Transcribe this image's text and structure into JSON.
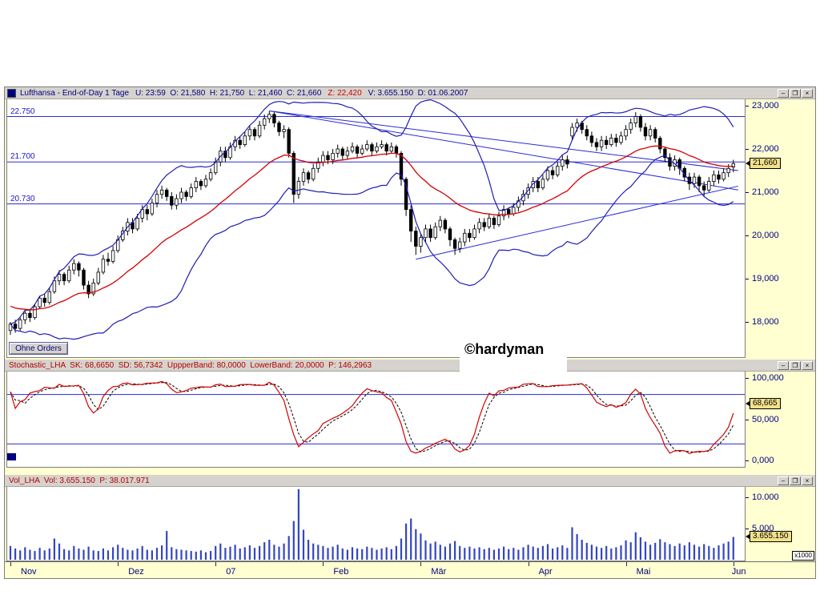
{
  "app": {
    "controls": {
      "minimize": "–",
      "maximize": "❒",
      "close": "×"
    }
  },
  "colors": {
    "navy": "#000080",
    "title_red": "#b40000",
    "line_blue": "#2a2ad4",
    "band_blue": "#1e1eb4",
    "ma_red": "#d40000",
    "candle": "#000000",
    "volume_bar": "#3346c2",
    "badge_bg": "#f2e18a",
    "axis_bg": "#ffffd2",
    "titlebar_bg": "#d6d3ce"
  },
  "price_panel": {
    "title_main": "Lufthansa - End-of-Day 1 Tage",
    "title_fields": "U: 23:59  O: 21,580  H: 21,750  L: 21,460  C: 21,660",
    "title_field_red": "Z: 22,420",
    "title_fields2": "V: 3.655.150  D: 01.06.2007",
    "axis": [
      {
        "label": "23,000",
        "value": 23.0
      },
      {
        "label": "22,000",
        "value": 22.0
      },
      {
        "label": "21,000",
        "value": 21.0
      },
      {
        "label": "20,000",
        "value": 20.0
      },
      {
        "label": "19,000",
        "value": 19.0
      },
      {
        "label": "18,000",
        "value": 18.0
      }
    ],
    "hlines": [
      {
        "label": "22.750",
        "value": 22.75
      },
      {
        "label": "21.700",
        "value": 21.7
      },
      {
        "label": "20.730",
        "value": 20.73
      }
    ],
    "price_badge": "21,660",
    "price_badge_value": 21.66,
    "orders_button": "Ohne Orders",
    "watermark": "©hardyman"
  },
  "stoch_panel": {
    "title": "Stochastic_LHA  SK: 68,6650  SD: 56,7342  UppperBand: 80,0000  LowerBand: 20,0000  P: 146,2963",
    "axis": [
      {
        "label": "100,000",
        "value": 100
      },
      {
        "label": "50,000",
        "value": 50
      },
      {
        "label": "0,000",
        "value": 0
      }
    ],
    "badge": "68,665",
    "badge_value": 68.665,
    "upper_band": 80,
    "lower_band": 20
  },
  "vol_panel": {
    "title": "Vol_LHA  Vol: 3.655.150  P: 38.017.971",
    "axis": [
      {
        "label": "10.000",
        "value": 10
      },
      {
        "label": "5.000",
        "value": 5
      }
    ],
    "badge": "3.655.150",
    "badge_value": 3.655,
    "x1000_label": "x1000"
  },
  "x_axis": {
    "months": [
      {
        "label": "Nov",
        "index": 0
      },
      {
        "label": "Dez",
        "index": 22
      },
      {
        "label": "07",
        "index": 42
      },
      {
        "label": "Feb",
        "index": 64
      },
      {
        "label": "Mär",
        "index": 84
      },
      {
        "label": "Apr",
        "index": 106
      },
      {
        "label": "Mai",
        "index": 126
      },
      {
        "label": "Jun",
        "index": 148
      }
    ]
  },
  "chart_data": {
    "type": "candlestick",
    "instrument": "Lufthansa",
    "last_close": 21.66,
    "y_axis_range": [
      17.2,
      23.15
    ],
    "indicators": {
      "ma_period": 20,
      "bollinger_period": 20,
      "bollinger_mult": 2,
      "stoch_k": 14,
      "stoch_smooth": 3,
      "stoch_d": 3
    },
    "trendlines": [
      {
        "from_index": 53,
        "from_price": 22.88,
        "to_index": 149,
        "to_price": 21.5
      },
      {
        "from_index": 53,
        "from_price": 22.88,
        "to_index": 149,
        "to_price": 21.05
      },
      {
        "from_index": 83,
        "from_price": 19.45,
        "to_index": 149,
        "to_price": 21.14
      }
    ],
    "candles_ohlc": [
      [
        17.8,
        18.0,
        17.7,
        17.95
      ],
      [
        17.95,
        18.05,
        17.75,
        17.85
      ],
      [
        17.85,
        18.1,
        17.8,
        18.05
      ],
      [
        18.05,
        18.25,
        17.95,
        18.2
      ],
      [
        18.2,
        18.3,
        18.0,
        18.1
      ],
      [
        18.1,
        18.4,
        18.05,
        18.35
      ],
      [
        18.35,
        18.6,
        18.3,
        18.55
      ],
      [
        18.55,
        18.65,
        18.35,
        18.45
      ],
      [
        18.45,
        18.8,
        18.4,
        18.7
      ],
      [
        18.7,
        19.05,
        18.65,
        18.95
      ],
      [
        18.95,
        19.2,
        18.85,
        19.1
      ],
      [
        19.1,
        19.15,
        18.85,
        18.95
      ],
      [
        18.95,
        19.3,
        18.9,
        19.2
      ],
      [
        19.2,
        19.45,
        19.1,
        19.35
      ],
      [
        19.35,
        19.4,
        19.05,
        19.2
      ],
      [
        19.2,
        19.25,
        18.75,
        18.85
      ],
      [
        18.85,
        18.95,
        18.55,
        18.65
      ],
      [
        18.65,
        19.0,
        18.6,
        18.9
      ],
      [
        18.9,
        19.25,
        18.85,
        19.15
      ],
      [
        19.15,
        19.55,
        19.1,
        19.45
      ],
      [
        19.45,
        19.6,
        19.3,
        19.4
      ],
      [
        19.4,
        19.75,
        19.35,
        19.65
      ],
      [
        19.65,
        20.0,
        19.6,
        19.9
      ],
      [
        19.9,
        20.2,
        19.85,
        20.1
      ],
      [
        20.1,
        20.4,
        20.0,
        20.3
      ],
      [
        20.3,
        20.4,
        20.05,
        20.15
      ],
      [
        20.15,
        20.5,
        20.1,
        20.4
      ],
      [
        20.4,
        20.7,
        20.3,
        20.6
      ],
      [
        20.6,
        20.7,
        20.35,
        20.5
      ],
      [
        20.5,
        20.85,
        20.45,
        20.75
      ],
      [
        20.75,
        21.05,
        20.65,
        20.95
      ],
      [
        20.95,
        21.15,
        20.85,
        21.05
      ],
      [
        21.05,
        21.1,
        20.8,
        20.9
      ],
      [
        20.9,
        21.0,
        20.6,
        20.7
      ],
      [
        20.7,
        20.95,
        20.6,
        20.85
      ],
      [
        20.85,
        21.1,
        20.75,
        21.0
      ],
      [
        21.0,
        21.05,
        20.8,
        20.9
      ],
      [
        20.9,
        21.2,
        20.85,
        21.1
      ],
      [
        21.1,
        21.35,
        21.0,
        21.25
      ],
      [
        21.25,
        21.3,
        21.05,
        21.15
      ],
      [
        21.15,
        21.4,
        21.1,
        21.3
      ],
      [
        21.3,
        21.55,
        21.25,
        21.45
      ],
      [
        21.45,
        21.8,
        21.4,
        21.7
      ],
      [
        21.7,
        22.05,
        21.6,
        21.95
      ],
      [
        21.95,
        22.05,
        21.7,
        21.8
      ],
      [
        21.8,
        22.15,
        21.75,
        22.05
      ],
      [
        22.05,
        22.3,
        21.95,
        22.2
      ],
      [
        22.2,
        22.3,
        22.0,
        22.1
      ],
      [
        22.1,
        22.4,
        22.05,
        22.3
      ],
      [
        22.3,
        22.55,
        22.2,
        22.45
      ],
      [
        22.45,
        22.5,
        22.2,
        22.3
      ],
      [
        22.3,
        22.65,
        22.25,
        22.55
      ],
      [
        22.55,
        22.8,
        22.45,
        22.7
      ],
      [
        22.7,
        22.87,
        22.6,
        22.8
      ],
      [
        22.8,
        22.85,
        22.5,
        22.6
      ],
      [
        22.6,
        22.65,
        22.3,
        22.4
      ],
      [
        22.4,
        22.55,
        22.25,
        22.45
      ],
      [
        22.45,
        22.5,
        21.8,
        21.9
      ],
      [
        21.9,
        21.95,
        20.75,
        20.95
      ],
      [
        20.95,
        21.35,
        20.85,
        21.25
      ],
      [
        21.25,
        21.55,
        21.15,
        21.45
      ],
      [
        21.45,
        21.5,
        21.2,
        21.3
      ],
      [
        21.3,
        21.65,
        21.25,
        21.55
      ],
      [
        21.55,
        21.8,
        21.45,
        21.7
      ],
      [
        21.7,
        21.95,
        21.6,
        21.85
      ],
      [
        21.85,
        21.95,
        21.65,
        21.75
      ],
      [
        21.75,
        22.0,
        21.65,
        21.9
      ],
      [
        21.9,
        22.1,
        21.8,
        22.0
      ],
      [
        22.0,
        22.05,
        21.75,
        21.85
      ],
      [
        21.85,
        22.05,
        21.75,
        21.95
      ],
      [
        21.95,
        22.15,
        21.9,
        22.05
      ],
      [
        22.05,
        22.1,
        21.8,
        21.9
      ],
      [
        21.9,
        22.1,
        21.85,
        22.0
      ],
      [
        22.0,
        22.2,
        21.95,
        22.1
      ],
      [
        22.1,
        22.15,
        21.85,
        21.95
      ],
      [
        21.95,
        22.15,
        21.9,
        22.05
      ],
      [
        22.05,
        22.2,
        22.0,
        22.1
      ],
      [
        22.1,
        22.15,
        21.85,
        21.95
      ],
      [
        21.95,
        22.15,
        21.9,
        22.05
      ],
      [
        22.05,
        22.1,
        21.8,
        21.9
      ],
      [
        21.9,
        21.95,
        21.15,
        21.3
      ],
      [
        21.3,
        21.35,
        20.45,
        20.6
      ],
      [
        20.6,
        20.7,
        19.85,
        20.1
      ],
      [
        20.1,
        20.2,
        19.55,
        19.75
      ],
      [
        19.75,
        20.05,
        19.6,
        19.95
      ],
      [
        19.95,
        20.25,
        19.85,
        20.15
      ],
      [
        20.15,
        20.25,
        19.85,
        19.95
      ],
      [
        19.95,
        20.3,
        19.9,
        20.2
      ],
      [
        20.2,
        20.45,
        20.1,
        20.35
      ],
      [
        20.35,
        20.4,
        20.05,
        20.15
      ],
      [
        20.15,
        20.2,
        19.75,
        19.9
      ],
      [
        19.9,
        19.95,
        19.55,
        19.7
      ],
      [
        19.7,
        19.95,
        19.6,
        19.85
      ],
      [
        19.85,
        20.15,
        19.75,
        20.05
      ],
      [
        20.05,
        20.15,
        19.85,
        19.95
      ],
      [
        19.95,
        20.25,
        19.9,
        20.15
      ],
      [
        20.15,
        20.4,
        20.05,
        20.3
      ],
      [
        20.3,
        20.4,
        20.1,
        20.2
      ],
      [
        20.2,
        20.5,
        20.15,
        20.4
      ],
      [
        20.4,
        20.45,
        20.15,
        20.25
      ],
      [
        20.25,
        20.55,
        20.2,
        20.45
      ],
      [
        20.45,
        20.7,
        20.35,
        20.6
      ],
      [
        20.6,
        20.65,
        20.4,
        20.5
      ],
      [
        20.5,
        20.75,
        20.45,
        20.65
      ],
      [
        20.65,
        20.9,
        20.55,
        20.8
      ],
      [
        20.8,
        21.05,
        20.7,
        20.95
      ],
      [
        20.95,
        21.2,
        20.85,
        21.1
      ],
      [
        21.1,
        21.35,
        21.0,
        21.25
      ],
      [
        21.25,
        21.35,
        21.0,
        21.1
      ],
      [
        21.1,
        21.4,
        21.05,
        21.3
      ],
      [
        21.3,
        21.6,
        21.25,
        21.5
      ],
      [
        21.5,
        21.6,
        21.3,
        21.4
      ],
      [
        21.4,
        21.7,
        21.35,
        21.6
      ],
      [
        21.6,
        21.85,
        21.5,
        21.75
      ],
      [
        21.75,
        21.85,
        21.55,
        21.65
      ],
      [
        22.3,
        22.6,
        22.2,
        22.5
      ],
      [
        22.5,
        22.7,
        22.4,
        22.6
      ],
      [
        22.6,
        22.65,
        22.35,
        22.45
      ],
      [
        22.45,
        22.55,
        22.2,
        22.3
      ],
      [
        22.3,
        22.4,
        22.05,
        22.15
      ],
      [
        22.15,
        22.25,
        21.95,
        22.05
      ],
      [
        22.05,
        22.3,
        21.95,
        22.2
      ],
      [
        22.2,
        22.3,
        22.0,
        22.1
      ],
      [
        22.1,
        22.35,
        22.05,
        22.25
      ],
      [
        22.25,
        22.35,
        22.05,
        22.15
      ],
      [
        22.15,
        22.4,
        22.1,
        22.3
      ],
      [
        22.3,
        22.55,
        22.2,
        22.45
      ],
      [
        22.45,
        22.7,
        22.35,
        22.6
      ],
      [
        22.6,
        22.85,
        22.5,
        22.75
      ],
      [
        22.75,
        22.8,
        22.4,
        22.5
      ],
      [
        22.5,
        22.6,
        22.2,
        22.3
      ],
      [
        22.3,
        22.55,
        22.2,
        22.45
      ],
      [
        22.45,
        22.5,
        22.15,
        22.25
      ],
      [
        22.25,
        22.3,
        21.9,
        22.0
      ],
      [
        22.0,
        22.05,
        21.7,
        21.8
      ],
      [
        21.8,
        21.9,
        21.5,
        21.6
      ],
      [
        21.6,
        21.85,
        21.5,
        21.75
      ],
      [
        21.75,
        21.8,
        21.4,
        21.55
      ],
      [
        21.55,
        21.6,
        21.25,
        21.35
      ],
      [
        21.35,
        21.45,
        21.05,
        21.2
      ],
      [
        21.2,
        21.45,
        21.1,
        21.35
      ],
      [
        21.35,
        21.4,
        21.0,
        21.15
      ],
      [
        21.15,
        21.25,
        20.9,
        21.05
      ],
      [
        21.05,
        21.35,
        21.0,
        21.25
      ],
      [
        21.25,
        21.5,
        21.15,
        21.4
      ],
      [
        21.4,
        21.5,
        21.2,
        21.3
      ],
      [
        21.3,
        21.55,
        21.25,
        21.45
      ],
      [
        21.45,
        21.65,
        21.35,
        21.55
      ],
      [
        21.58,
        21.75,
        21.46,
        21.66
      ]
    ],
    "volumes_millions": [
      2.2,
      1.8,
      1.5,
      2.0,
      1.6,
      1.4,
      1.9,
      1.5,
      1.8,
      3.4,
      2.6,
      1.7,
      1.5,
      2.2,
      1.8,
      1.6,
      2.1,
      1.5,
      1.4,
      1.8,
      1.5,
      2.0,
      2.4,
      1.9,
      1.6,
      1.5,
      1.8,
      2.2,
      1.6,
      1.5,
      1.9,
      2.3,
      4.6,
      2.0,
      1.7,
      1.6,
      1.5,
      1.4,
      1.3,
      1.5,
      1.2,
      1.4,
      2.2,
      2.6,
      1.9,
      2.1,
      2.4,
      1.8,
      2.0,
      2.3,
      1.9,
      2.2,
      2.8,
      3.2,
      2.4,
      2.1,
      2.6,
      3.8,
      6.2,
      11.3,
      4.8,
      3.2,
      2.6,
      2.4,
      2.2,
      1.9,
      2.1,
      2.4,
      1.8,
      1.6,
      2.0,
      1.8,
      1.7,
      2.1,
      1.9,
      1.6,
      1.8,
      2.0,
      1.7,
      2.2,
      3.4,
      5.8,
      6.6,
      4.9,
      4.2,
      3.1,
      2.6,
      2.9,
      2.4,
      2.1,
      2.6,
      3.0,
      2.2,
      1.9,
      2.1,
      1.8,
      2.0,
      1.7,
      1.9,
      1.6,
      1.8,
      2.1,
      1.7,
      1.9,
      1.6,
      2.0,
      2.4,
      2.1,
      1.9,
      2.2,
      2.5,
      1.8,
      2.0,
      2.3,
      1.9,
      5.2,
      4.1,
      3.2,
      2.7,
      2.4,
      2.1,
      1.9,
      2.2,
      1.8,
      2.0,
      2.3,
      3.1,
      2.8,
      4.4,
      3.6,
      2.9,
      2.4,
      2.7,
      3.3,
      2.8,
      2.5,
      2.2,
      2.6,
      2.3,
      2.8,
      2.4,
      2.1,
      2.5,
      2.2,
      1.9,
      2.3,
      2.6,
      2.9,
      3.655
    ]
  }
}
